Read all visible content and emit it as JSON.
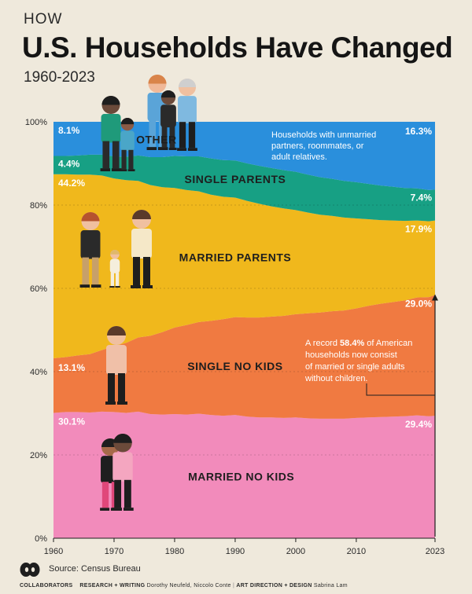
{
  "header": {
    "kicker": "HOW",
    "title": "U.S. Households Have Changed",
    "years": "1960-2023"
  },
  "footer": {
    "source": "Source: Census Bureau",
    "collaborators_label": "COLLABORATORS",
    "research_label": "RESEARCH + WRITING",
    "research_names": "Dorothy Neufeld, Niccolo Conte",
    "art_label": "ART DIRECTION + DESIGN",
    "art_names": "Sabrina Lam"
  },
  "chart_data": {
    "type": "area",
    "stacked": true,
    "x": [
      1960,
      1962,
      1964,
      1966,
      1968,
      1970,
      1972,
      1974,
      1976,
      1978,
      1980,
      1982,
      1984,
      1986,
      1988,
      1990,
      1992,
      1994,
      1996,
      1998,
      2000,
      2002,
      2004,
      2006,
      2008,
      2010,
      2012,
      2014,
      2016,
      2018,
      2020,
      2022,
      2023
    ],
    "xticks": [
      1960,
      1970,
      1980,
      1990,
      2000,
      2010,
      2023
    ],
    "ylim": [
      0,
      100
    ],
    "yticks": [
      0,
      20,
      40,
      60,
      80,
      100
    ],
    "ytick_labels": [
      "0%",
      "20%",
      "40%",
      "60%",
      "80%",
      "100%"
    ],
    "series": [
      {
        "name": "MARRIED NO KIDS",
        "color": "#f28bbb",
        "values": [
          30.1,
          30.3,
          30.3,
          30.2,
          30.4,
          30.3,
          30.1,
          30.4,
          29.8,
          29.7,
          29.8,
          29.7,
          29.9,
          29.6,
          29.4,
          29.6,
          29.2,
          29.0,
          29.0,
          28.9,
          29.0,
          28.8,
          28.7,
          28.7,
          28.7,
          28.9,
          29.0,
          29.1,
          29.2,
          29.3,
          29.5,
          29.3,
          29.4
        ]
      },
      {
        "name": "SINGLE NO KIDS",
        "color": "#f07a41",
        "values": [
          13.1,
          13.2,
          13.6,
          14.0,
          14.8,
          15.8,
          16.8,
          17.8,
          18.8,
          19.8,
          20.8,
          21.5,
          22.0,
          22.6,
          23.2,
          23.5,
          23.8,
          24.0,
          24.2,
          24.5,
          24.8,
          25.2,
          25.5,
          25.8,
          26.0,
          26.3,
          26.8,
          27.2,
          27.5,
          27.8,
          28.3,
          28.6,
          29.0
        ]
      },
      {
        "name": "MARRIED PARENTS",
        "color": "#f0b81c",
        "values": [
          44.2,
          43.9,
          43.4,
          43.1,
          41.9,
          40.3,
          39.1,
          37.6,
          36.2,
          34.8,
          33.5,
          32.4,
          31.4,
          30.3,
          29.4,
          28.7,
          28.0,
          27.3,
          26.5,
          25.8,
          25.0,
          24.2,
          23.5,
          22.9,
          22.3,
          21.6,
          20.8,
          20.1,
          19.6,
          19.1,
          18.5,
          18.2,
          17.9
        ]
      },
      {
        "name": "SINGLE PARENTS",
        "color": "#17a084",
        "values": [
          4.4,
          4.4,
          4.6,
          4.8,
          5.0,
          5.3,
          5.6,
          6.1,
          6.7,
          7.2,
          7.7,
          8.1,
          8.4,
          8.7,
          8.8,
          8.9,
          9.0,
          9.1,
          9.2,
          9.2,
          9.2,
          9.1,
          9.0,
          8.9,
          8.8,
          8.7,
          8.5,
          8.3,
          8.1,
          7.9,
          7.7,
          7.5,
          7.4
        ]
      },
      {
        "name": "OTHER",
        "color": "#2a8fdc",
        "values": [
          8.1,
          8.2,
          8.1,
          7.9,
          7.9,
          8.3,
          8.4,
          8.1,
          8.5,
          8.5,
          8.2,
          8.3,
          8.3,
          8.8,
          9.2,
          9.3,
          10.0,
          10.6,
          11.1,
          11.6,
          12.0,
          12.7,
          13.3,
          13.7,
          14.2,
          14.5,
          14.9,
          15.3,
          15.6,
          15.9,
          16.0,
          16.4,
          16.3
        ]
      }
    ],
    "start_labels": [
      "30.1%",
      "13.1%",
      "44.2%",
      "4.4%",
      "8.1%"
    ],
    "end_labels": [
      "29.4%",
      "29.0%",
      "17.9%",
      "7.4%",
      "16.3%"
    ],
    "other_note": "Households with unmarried partners, roommates, or adult relatives.",
    "callout": {
      "line1_pre": "A record ",
      "line1_bold": "58.4%",
      "line1_post": " of American",
      "line2": "households now consist",
      "line3": "of married or single adults",
      "line4": "without children."
    },
    "grid": true
  }
}
